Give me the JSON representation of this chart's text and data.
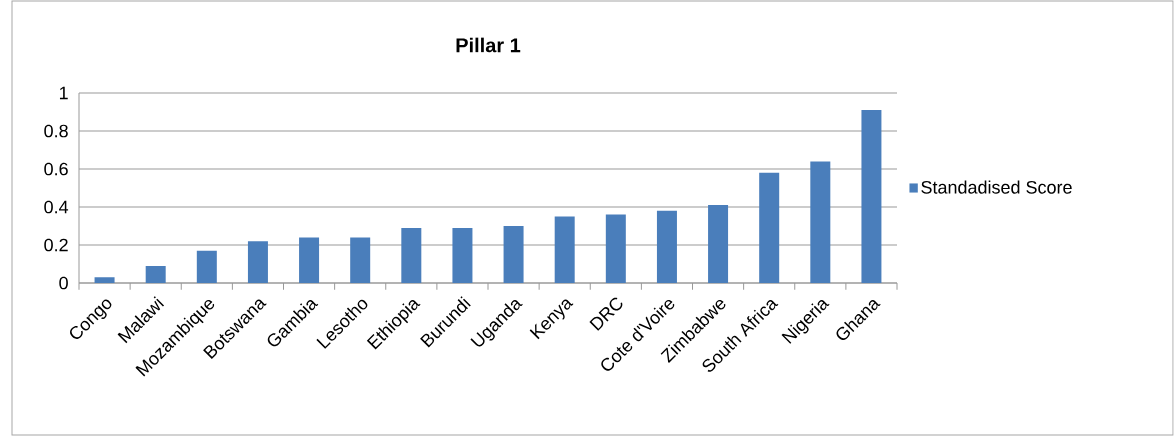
{
  "chart_data": {
    "type": "bar",
    "title": "Pillar 1",
    "categories": [
      "Congo",
      "Malawi",
      "Mozambique",
      "Botswana",
      "Gambia",
      "Lesotho",
      "Ethiopia",
      "Burundi",
      "Uganda",
      "Kenya",
      "DRC",
      "Cote d'Voire",
      "Zimbabwe",
      "South Africa",
      "Nigeria",
      "Ghana"
    ],
    "series": [
      {
        "name": "Standadised Score",
        "color": "#4a7ebb",
        "values": [
          0.03,
          0.09,
          0.17,
          0.22,
          0.24,
          0.24,
          0.29,
          0.29,
          0.3,
          0.35,
          0.36,
          0.38,
          0.41,
          0.58,
          0.64,
          0.91
        ]
      }
    ],
    "ylim": [
      0,
      1
    ],
    "yticks": [
      0,
      0.2,
      0.4,
      0.6,
      0.8,
      1
    ],
    "grid": "y",
    "legend": "right"
  }
}
